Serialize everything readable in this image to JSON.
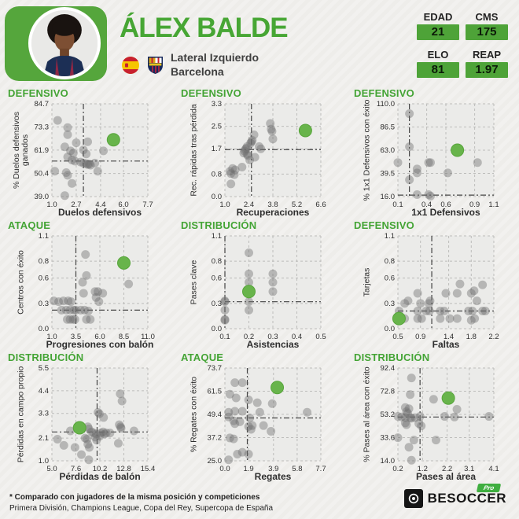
{
  "header": {
    "name": "ÁLEX BALDE",
    "position": "Lateral Izquierdo",
    "team": "Barcelona",
    "stats": [
      {
        "label": "EDAD",
        "value": "21"
      },
      {
        "label": "CMS",
        "value": "175"
      },
      {
        "label": "ELO",
        "value": "81"
      },
      {
        "label": "REAP",
        "value": "1.97"
      }
    ]
  },
  "icons": {
    "spain-flag-icon": "circular Spain flag (red-yellow-red bands)",
    "barcelona-crest-icon": "FC Barcelona shield crest",
    "besoccer-logo-icon": "black square with white target circle",
    "player-photo": "portrait of Álex Balde"
  },
  "colors": {
    "accent_green": "#47a634",
    "panel_green": "#55a63c",
    "stat_box_green": "#4ea338",
    "player_dot_green": "#68b44b",
    "dot_gray": "#787878",
    "plot_bg": "#ebebe9",
    "crosshair": "#444444"
  },
  "footer": {
    "note_line1": "* Comparado con jugadores de la misma posición y competiciones",
    "note_line2": "Primera División, Champions League, Copa del Rey, Supercopa de España",
    "brand": "BESOCCER",
    "brand_badge": "Pro"
  },
  "chart_data": [
    {
      "type": "scatter",
      "section": "DEFENSIVO",
      "xlabel": "Duelos defensivos",
      "ylabel": "% Duelos defensivos\nganados",
      "xticks": [
        "1.0",
        "2.7",
        "4.4",
        "6.0",
        "7.7"
      ],
      "yticks": [
        "39.0",
        "50.4",
        "61.9",
        "73.3",
        "84.7"
      ],
      "xlim": [
        1.0,
        7.7
      ],
      "ylim": [
        39.0,
        84.7
      ],
      "avg": [
        3.2,
        56.5
      ],
      "player": [
        5.3,
        67.0
      ],
      "points": [
        [
          1.4,
          76.5
        ],
        [
          2.1,
          73.0
        ],
        [
          2.1,
          69.5
        ],
        [
          1.9,
          63.5
        ],
        [
          2.7,
          65.5
        ],
        [
          3.5,
          66.0
        ],
        [
          2.3,
          61.5
        ],
        [
          2.5,
          60.5
        ],
        [
          3.2,
          62.0
        ],
        [
          3.4,
          60.0
        ],
        [
          4.6,
          61.5
        ],
        [
          2.1,
          58.5
        ],
        [
          2.4,
          57.0
        ],
        [
          2.6,
          56.5
        ],
        [
          3.0,
          56.0
        ],
        [
          3.2,
          55.5
        ],
        [
          3.4,
          55.2
        ],
        [
          3.5,
          54.8
        ],
        [
          3.6,
          55.0
        ],
        [
          3.7,
          54.5
        ],
        [
          4.0,
          55.5
        ],
        [
          1.2,
          51.5
        ],
        [
          2.0,
          50.8
        ],
        [
          2.1,
          49.5
        ],
        [
          4.2,
          51.5
        ],
        [
          2.4,
          45.5
        ],
        [
          1.9,
          39.5
        ]
      ]
    },
    {
      "type": "scatter",
      "section": "DEFENSIVO",
      "xlabel": "Recuperaciones",
      "ylabel": "Rec. rápidas tras pérdida",
      "xticks": [
        "1.0",
        "2.4",
        "3.8",
        "5.2",
        "6.6"
      ],
      "yticks": [
        "0.0",
        "0.8",
        "1.7",
        "2.5",
        "3.3"
      ],
      "xlim": [
        1.0,
        6.6
      ],
      "ylim": [
        0.0,
        3.3
      ],
      "avg": [
        2.55,
        1.67
      ],
      "player": [
        5.7,
        2.35
      ],
      "points": [
        [
          1.3,
          0.9
        ],
        [
          1.35,
          0.82
        ],
        [
          1.45,
          1.0
        ],
        [
          1.55,
          0.78
        ],
        [
          1.6,
          0.95
        ],
        [
          1.35,
          0.45
        ],
        [
          2.0,
          1.05
        ],
        [
          2.1,
          1.55
        ],
        [
          2.15,
          1.62
        ],
        [
          2.2,
          1.68
        ],
        [
          2.25,
          1.72
        ],
        [
          2.3,
          1.78
        ],
        [
          2.3,
          1.5
        ],
        [
          2.35,
          1.45
        ],
        [
          2.45,
          1.3
        ],
        [
          2.5,
          1.9
        ],
        [
          2.55,
          1.95
        ],
        [
          2.6,
          2.0
        ],
        [
          2.7,
          2.2
        ],
        [
          2.75,
          1.4
        ],
        [
          3.0,
          1.78
        ],
        [
          3.1,
          1.7
        ],
        [
          3.65,
          2.6
        ],
        [
          3.7,
          2.4
        ],
        [
          3.75,
          2.32
        ],
        [
          3.8,
          2.05
        ]
      ]
    },
    {
      "type": "scatter",
      "section": "DEFENSIVO",
      "xlabel": "1x1 Defensivos",
      "ylabel": "% 1x1 Defensivos con éxito",
      "xticks": [
        "0.1",
        "0.4",
        "0.6",
        "0.9",
        "1.1"
      ],
      "yticks": [
        "16.0",
        "39.5",
        "63.0",
        "86.5",
        "110.0"
      ],
      "xlim": [
        0.1,
        1.1
      ],
      "ylim": [
        16.0,
        110.0
      ],
      "avg": [
        0.22,
        17.5
      ],
      "player": [
        0.72,
        63.0
      ],
      "points": [
        [
          0.22,
          100.0
        ],
        [
          0.22,
          66.5
        ],
        [
          0.1,
          50.5
        ],
        [
          0.42,
          50.5
        ],
        [
          0.44,
          50.5
        ],
        [
          0.93,
          50.5
        ],
        [
          0.3,
          44.0
        ],
        [
          0.3,
          40.0
        ],
        [
          0.62,
          40.0
        ],
        [
          0.22,
          33.0
        ],
        [
          0.3,
          18.0
        ],
        [
          0.42,
          18.0
        ],
        [
          0.44,
          16.5
        ]
      ]
    },
    {
      "type": "scatter",
      "section": "ATAQUE",
      "xlabel": "Progresiones con balón",
      "ylabel": "Centros con éxito",
      "xticks": [
        "1.0",
        "3.5",
        "6.0",
        "8.5",
        "11.0"
      ],
      "yticks": [
        "0.0",
        "0.3",
        "0.6",
        "0.8",
        "1.1"
      ],
      "xlim": [
        1.0,
        11.0
      ],
      "ylim": [
        0.0,
        1.1
      ],
      "avg": [
        3.5,
        0.22
      ],
      "player": [
        8.5,
        0.78
      ],
      "points": [
        [
          4.5,
          0.88
        ],
        [
          4.6,
          0.63
        ],
        [
          9.0,
          0.53
        ],
        [
          4.2,
          0.55
        ],
        [
          4.3,
          0.42
        ],
        [
          5.5,
          0.44
        ],
        [
          5.8,
          0.44
        ],
        [
          6.3,
          0.42
        ],
        [
          5.6,
          0.37
        ],
        [
          1.2,
          0.33
        ],
        [
          1.7,
          0.32
        ],
        [
          2.2,
          0.33
        ],
        [
          2.7,
          0.33
        ],
        [
          3.0,
          0.32
        ],
        [
          5.9,
          0.32
        ],
        [
          2.0,
          0.22
        ],
        [
          2.5,
          0.22
        ],
        [
          2.9,
          0.22
        ],
        [
          3.3,
          0.22
        ],
        [
          3.5,
          0.22
        ],
        [
          4.0,
          0.22
        ],
        [
          4.4,
          0.22
        ],
        [
          4.8,
          0.21
        ],
        [
          2.6,
          0.11
        ],
        [
          2.9,
          0.11
        ],
        [
          3.2,
          0.11
        ],
        [
          3.4,
          0.11
        ],
        [
          4.6,
          0.11
        ],
        [
          5.0,
          0.11
        ]
      ]
    },
    {
      "type": "scatter",
      "section": "DISTRIBUCIÓN",
      "xlabel": "Asistencias",
      "ylabel": "Pases clave",
      "xticks": [
        "0.1",
        "0.2",
        "0.3",
        "0.4",
        "0.5"
      ],
      "yticks": [
        "0.0",
        "0.3",
        "0.6",
        "0.8",
        "1.1"
      ],
      "xlim": [
        0.1,
        0.5
      ],
      "ylim": [
        0.0,
        1.1
      ],
      "avg": [
        0.1,
        0.32
      ],
      "player": [
        0.2,
        0.44
      ],
      "points": [
        [
          0.2,
          0.9
        ],
        [
          0.2,
          0.65
        ],
        [
          0.3,
          0.65
        ],
        [
          0.2,
          0.55
        ],
        [
          0.3,
          0.55
        ],
        [
          0.3,
          0.44
        ],
        [
          0.1,
          0.33
        ],
        [
          0.1,
          0.32
        ],
        [
          0.2,
          0.32
        ],
        [
          0.1,
          0.22
        ],
        [
          0.2,
          0.22
        ],
        [
          0.1,
          0.11
        ],
        [
          0.1,
          0.1
        ]
      ]
    },
    {
      "type": "scatter",
      "section": "DEFENSIVO",
      "xlabel": "Faltas",
      "ylabel": "Tarjetas",
      "xticks": [
        "0.5",
        "0.9",
        "1.4",
        "1.8",
        "2.2"
      ],
      "yticks": [
        "0.0",
        "0.3",
        "0.6",
        "0.8",
        "1.1"
      ],
      "xlim": [
        0.5,
        2.2
      ],
      "ylim": [
        0.0,
        1.1
      ],
      "avg": [
        1.1,
        0.21
      ],
      "player": [
        0.52,
        0.12
      ],
      "points": [
        [
          0.62,
          0.3
        ],
        [
          0.68,
          0.33
        ],
        [
          0.85,
          0.42
        ],
        [
          0.9,
          0.3
        ],
        [
          1.05,
          0.3
        ],
        [
          1.07,
          0.33
        ],
        [
          1.35,
          0.42
        ],
        [
          1.55,
          0.42
        ],
        [
          1.6,
          0.53
        ],
        [
          1.8,
          0.42
        ],
        [
          1.85,
          0.45
        ],
        [
          2.0,
          0.52
        ],
        [
          1.9,
          0.33
        ],
        [
          0.52,
          0.21
        ],
        [
          0.85,
          0.21
        ],
        [
          1.0,
          0.21
        ],
        [
          1.06,
          0.21
        ],
        [
          1.25,
          0.21
        ],
        [
          1.32,
          0.21
        ],
        [
          1.75,
          0.21
        ],
        [
          1.82,
          0.21
        ],
        [
          2.0,
          0.21
        ],
        [
          2.05,
          0.21
        ],
        [
          0.56,
          0.12
        ],
        [
          0.62,
          0.12
        ],
        [
          0.85,
          0.12
        ],
        [
          0.92,
          0.12
        ],
        [
          1.25,
          0.12
        ],
        [
          1.42,
          0.12
        ],
        [
          1.55,
          0.12
        ],
        [
          1.8,
          0.1
        ],
        [
          1.86,
          0.12
        ]
      ]
    },
    {
      "type": "scatter",
      "section": "DISTRIBUCIÓN",
      "xlabel": "Pérdidas de balón",
      "ylabel": "Pérdidas en campo propio",
      "xticks": [
        "5.0",
        "7.6",
        "10.2",
        "12.8",
        "15.4"
      ],
      "yticks": [
        "1.0",
        "2.1",
        "3.3",
        "4.4",
        "5.5"
      ],
      "xlim": [
        5.0,
        15.4
      ],
      "ylim": [
        1.0,
        5.5
      ],
      "avg": [
        9.9,
        2.4
      ],
      "player": [
        8.0,
        2.6
      ],
      "points": [
        [
          12.4,
          4.25
        ],
        [
          12.6,
          3.9
        ],
        [
          10.0,
          3.35
        ],
        [
          10.15,
          3.28
        ],
        [
          10.6,
          3.1
        ],
        [
          12.3,
          2.75
        ],
        [
          12.45,
          2.65
        ],
        [
          12.5,
          2.58
        ],
        [
          8.9,
          2.65
        ],
        [
          9.0,
          2.55
        ],
        [
          13.9,
          2.45
        ],
        [
          7.0,
          2.45
        ],
        [
          9.3,
          2.4
        ],
        [
          9.5,
          2.35
        ],
        [
          9.8,
          2.3
        ],
        [
          10.3,
          2.35
        ],
        [
          10.55,
          2.4
        ],
        [
          10.7,
          2.3
        ],
        [
          10.9,
          2.35
        ],
        [
          11.3,
          2.35
        ],
        [
          5.6,
          2.05
        ],
        [
          8.6,
          2.1
        ],
        [
          8.8,
          2.05
        ],
        [
          9.7,
          2.15
        ],
        [
          9.85,
          2.0
        ],
        [
          10.2,
          2.2
        ],
        [
          6.3,
          1.75
        ],
        [
          7.5,
          1.65
        ],
        [
          8.9,
          1.8
        ],
        [
          9.05,
          1.65
        ],
        [
          12.2,
          1.85
        ],
        [
          8.2,
          1.3
        ],
        [
          9.0,
          1.05
        ]
      ]
    },
    {
      "type": "scatter",
      "section": "ATAQUE",
      "xlabel": "Regates",
      "ylabel": "% Regates con éxito",
      "xticks": [
        "0.0",
        "1.9",
        "3.9",
        "5.8",
        "7.7"
      ],
      "yticks": [
        "25.0",
        "37.2",
        "49.4",
        "61.5",
        "73.7"
      ],
      "xlim": [
        0.0,
        7.7
      ],
      "ylim": [
        25.0,
        73.7
      ],
      "avg": [
        1.8,
        47.5
      ],
      "player": [
        4.2,
        63.5
      ],
      "points": [
        [
          0.8,
          66.0
        ],
        [
          1.4,
          66.0
        ],
        [
          0.4,
          60.0
        ],
        [
          0.9,
          58.0
        ],
        [
          1.9,
          57.0
        ],
        [
          2.6,
          55.5
        ],
        [
          3.8,
          55.0
        ],
        [
          0.3,
          50.5
        ],
        [
          0.8,
          51.0
        ],
        [
          1.4,
          51.0
        ],
        [
          2.8,
          50.5
        ],
        [
          6.6,
          50.5
        ],
        [
          0.3,
          48.0
        ],
        [
          0.7,
          46.0
        ],
        [
          0.8,
          44.5
        ],
        [
          1.2,
          45.5
        ],
        [
          2.0,
          47.5
        ],
        [
          1.9,
          43.0
        ],
        [
          2.2,
          43.5
        ],
        [
          3.1,
          43.5
        ],
        [
          2.1,
          41.5
        ],
        [
          3.7,
          40.5
        ],
        [
          0.4,
          37.0
        ],
        [
          0.7,
          36.5
        ],
        [
          1.4,
          29.5
        ],
        [
          1.0,
          28.5
        ],
        [
          1.9,
          28.5
        ],
        [
          0.3,
          25.5
        ]
      ]
    },
    {
      "type": "scatter",
      "section": "DISTRIBUCIÓN",
      "xlabel": "Pases al área",
      "ylabel": "% Pases al área con éxito",
      "xticks": [
        "0.2",
        "1.2",
        "2.2",
        "3.1",
        "4.1"
      ],
      "yticks": [
        "14.0",
        "33.6",
        "53.2",
        "72.8",
        "92.4"
      ],
      "xlim": [
        0.2,
        4.1
      ],
      "ylim": [
        14.0,
        92.4
      ],
      "avg": [
        1.1,
        51.0
      ],
      "player": [
        2.25,
        67.0
      ],
      "points": [
        [
          0.75,
          84.0
        ],
        [
          0.7,
          70.0
        ],
        [
          1.65,
          66.0
        ],
        [
          2.6,
          57.5
        ],
        [
          0.5,
          59.0
        ],
        [
          0.65,
          58.0
        ],
        [
          0.55,
          55.5
        ],
        [
          0.6,
          54.0
        ],
        [
          0.2,
          51.5
        ],
        [
          0.35,
          51.0
        ],
        [
          0.5,
          50.5
        ],
        [
          0.7,
          50.5
        ],
        [
          0.75,
          50.0
        ],
        [
          0.9,
          50.5
        ],
        [
          1.1,
          51.5
        ],
        [
          2.1,
          51.5
        ],
        [
          2.5,
          51.0
        ],
        [
          3.9,
          51.5
        ],
        [
          0.5,
          46.0
        ],
        [
          0.55,
          44.5
        ],
        [
          1.05,
          45.5
        ],
        [
          1.15,
          43.5
        ],
        [
          0.2,
          33.5
        ],
        [
          0.85,
          31.5
        ],
        [
          1.75,
          31.5
        ],
        [
          0.65,
          25.5
        ],
        [
          0.75,
          14.5
        ]
      ]
    }
  ]
}
